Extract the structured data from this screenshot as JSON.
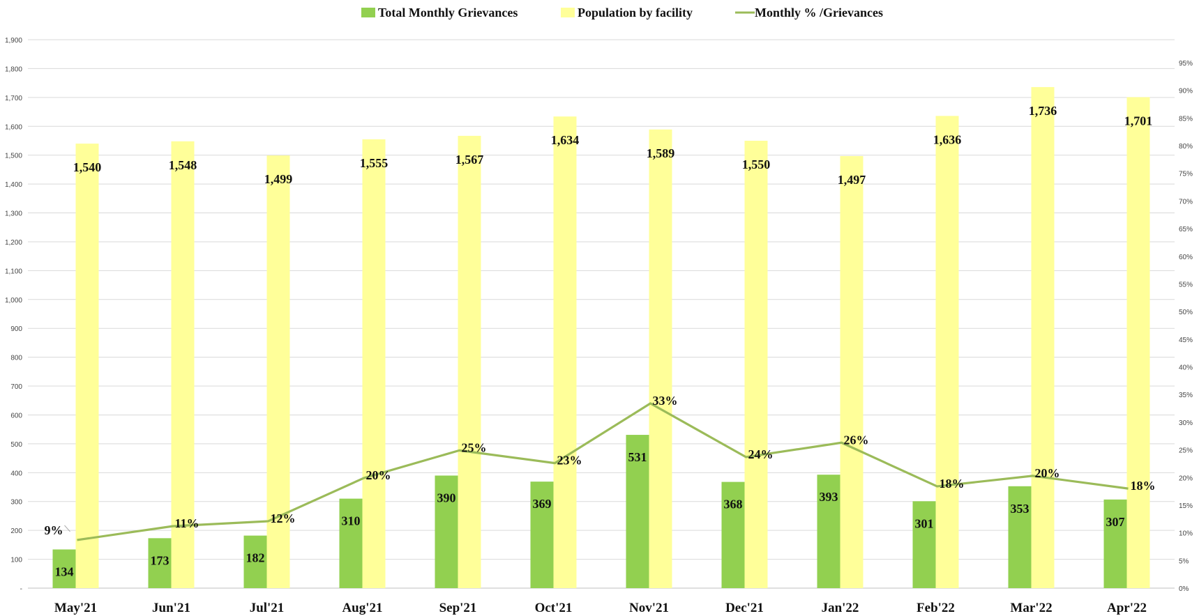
{
  "chart_data": {
    "type": "bar",
    "categories": [
      "May'21",
      "Jun'21",
      "Jul'21",
      "Aug'21",
      "Sep'21",
      "Oct'21",
      "Nov'21",
      "Dec'21",
      "Jan'22",
      "Feb'22",
      "Mar'22",
      "Apr'22"
    ],
    "series": [
      {
        "name": "Total Monthly Grievances",
        "type": "bar",
        "axis": "left",
        "color": "#92d050",
        "values": [
          134,
          173,
          182,
          310,
          390,
          369,
          531,
          368,
          393,
          301,
          353,
          307
        ],
        "labels": [
          "134",
          "173",
          "182",
          "310",
          "390",
          "369",
          "531",
          "368",
          "393",
          "301",
          "353",
          "307"
        ]
      },
      {
        "name": "Population by facility",
        "type": "bar",
        "axis": "left",
        "color": "#ffff99",
        "values": [
          1540,
          1548,
          1499,
          1555,
          1567,
          1634,
          1589,
          1550,
          1497,
          1636,
          1736,
          1701
        ],
        "labels": [
          "1,540",
          "1,548",
          "1,499",
          "1,555",
          "1,567",
          "1,634",
          "1,589",
          "1,550",
          "1,497",
          "1,636",
          "1,736",
          "1,701"
        ]
      },
      {
        "name": "Monthly % /Grievances",
        "type": "line",
        "axis": "right",
        "color": "#9bbb59",
        "values": [
          8.7,
          11.2,
          12.1,
          19.9,
          24.9,
          22.6,
          33.4,
          23.7,
          26.3,
          18.4,
          20.3,
          18.0
        ],
        "labels": [
          "9%",
          "11%",
          "12%",
          "20%",
          "25%",
          "23%",
          "33%",
          "24%",
          "26%",
          "18%",
          "20%",
          "18%"
        ]
      }
    ],
    "ylim": [
      0,
      1900
    ],
    "y_ticks": [
      "-",
      "100",
      "200",
      "300",
      "400",
      "500",
      "600",
      "700",
      "800",
      "900",
      "1,000",
      "1,100",
      "1,200",
      "1,300",
      "1,400",
      "1,500",
      "1,600",
      "1,700",
      "1,800",
      "1,900"
    ],
    "y2lim": [
      0,
      95
    ],
    "y2_ticks": [
      "0%",
      "5%",
      "10%",
      "15%",
      "20%",
      "25%",
      "30%",
      "35%",
      "40%",
      "45%",
      "50%",
      "55%",
      "60%",
      "65%",
      "70%",
      "75%",
      "80%",
      "85%",
      "90%",
      "95%"
    ],
    "grid": true,
    "legend_position": "top-center",
    "title": "",
    "xlabel": "",
    "ylabel": ""
  }
}
